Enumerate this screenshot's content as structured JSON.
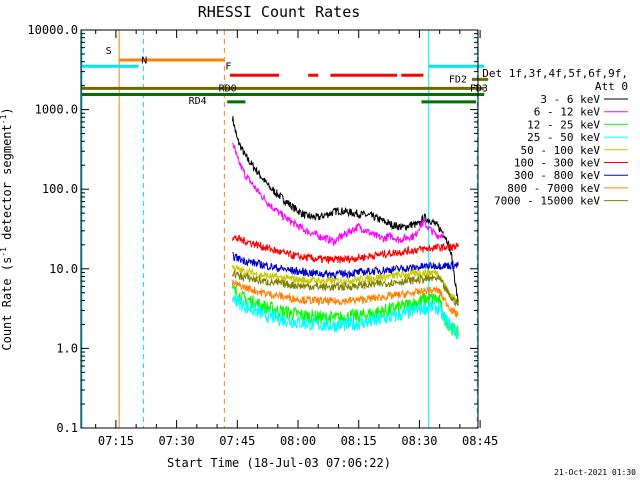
{
  "chart_data": {
    "type": "line",
    "title": "RHESSI Count Rates",
    "xlabel": "Start Time (18-Jul-03 07:06:22)",
    "ylabel_main": "Count Rate (s",
    "ylabel_sup": "-1",
    "ylabel_rest": " detector segment",
    "ylabel_sup2": "-1",
    "ylabel_close": ")",
    "yscale": "log",
    "ylim": [
      0.1,
      10000
    ],
    "xlim_min": [
      426.37,
      766
    ],
    "x_ticks": [
      {
        "t": 435,
        "label": "07:15"
      },
      {
        "t": 450,
        "label": "07:30"
      },
      {
        "t": 465,
        "label": "07:45"
      },
      {
        "t": 480,
        "label": "08:00"
      },
      {
        "t": 495,
        "label": "08:15"
      },
      {
        "t": 510,
        "label": "08:30"
      },
      {
        "t": 525,
        "label": "08:45"
      }
    ],
    "y_ticks": [
      {
        "v": 0.1,
        "label": "0.1"
      },
      {
        "v": 1,
        "label": "1.0"
      },
      {
        "v": 10,
        "label": "10.0"
      },
      {
        "v": 100,
        "label": "100.0"
      },
      {
        "v": 1000,
        "label": "1000.0"
      },
      {
        "v": 10000,
        "label": "10000.0"
      }
    ],
    "legend_header": [
      "Det 1f,3f,4f,5f,6f,9f,",
      "Att 0"
    ],
    "series": [
      {
        "name": "3 - 6 keV",
        "color": "#000000",
        "points": [
          [
            463.8,
            800
          ],
          [
            465,
            420
          ],
          [
            467,
            260
          ],
          [
            470,
            165
          ],
          [
            473,
            105
          ],
          [
            476,
            78
          ],
          [
            479,
            58
          ],
          [
            482,
            46
          ],
          [
            485,
            44
          ],
          [
            487,
            48
          ],
          [
            490,
            54
          ],
          [
            492,
            52
          ],
          [
            494,
            50
          ],
          [
            496,
            48
          ],
          [
            498,
            46
          ],
          [
            500,
            42
          ],
          [
            503,
            36
          ],
          [
            506,
            33
          ],
          [
            508,
            36
          ],
          [
            510,
            36
          ],
          [
            511,
            44
          ],
          [
            512,
            42
          ],
          [
            513,
            40
          ],
          [
            514,
            36
          ],
          [
            515,
            32
          ],
          [
            516,
            28
          ],
          [
            517,
            22
          ],
          [
            518,
            14
          ],
          [
            519,
            6
          ],
          [
            519.6,
            3.5
          ]
        ]
      },
      {
        "name": "6 - 12 keV",
        "color": "#ff00ff",
        "points": [
          [
            463.8,
            400
          ],
          [
            465,
            240
          ],
          [
            467,
            150
          ],
          [
            470,
            95
          ],
          [
            473,
            64
          ],
          [
            476,
            47
          ],
          [
            479,
            37
          ],
          [
            482,
            30
          ],
          [
            485,
            26
          ],
          [
            487,
            24
          ],
          [
            489,
            22
          ],
          [
            491,
            26
          ],
          [
            493,
            30
          ],
          [
            495,
            34
          ],
          [
            497,
            30
          ],
          [
            499,
            26
          ],
          [
            501,
            24
          ],
          [
            503,
            26
          ],
          [
            505,
            23
          ],
          [
            507,
            25
          ],
          [
            509,
            26
          ],
          [
            510,
            34
          ],
          [
            511,
            38
          ],
          [
            512,
            34
          ],
          [
            513,
            30
          ],
          [
            514,
            27
          ],
          [
            515,
            26
          ],
          [
            516,
            28
          ]
        ]
      },
      {
        "name": "12 - 25 keV",
        "color": "#00ff00",
        "points": [
          [
            463.8,
            5.5
          ],
          [
            466,
            4.4
          ],
          [
            468,
            4
          ],
          [
            470,
            3.6
          ],
          [
            472,
            3.3
          ],
          [
            475,
            3
          ],
          [
            478,
            2.8
          ],
          [
            481,
            2.6
          ],
          [
            484,
            2.5
          ],
          [
            487,
            2.4
          ],
          [
            490,
            2.4
          ],
          [
            493,
            2.5
          ],
          [
            496,
            2.6
          ],
          [
            499,
            2.8
          ],
          [
            502,
            3
          ],
          [
            505,
            3.3
          ],
          [
            508,
            3.6
          ],
          [
            510,
            3.9
          ],
          [
            512,
            4.2
          ],
          [
            514,
            4.2
          ],
          [
            515,
            3.9
          ],
          [
            516,
            2.5
          ],
          [
            518,
            1.8
          ],
          [
            519.6,
            1.5
          ]
        ]
      },
      {
        "name": "25 - 50 keV",
        "color": "#00ffff",
        "points": [
          [
            463.8,
            4.4
          ],
          [
            466,
            3.6
          ],
          [
            468,
            3.2
          ],
          [
            470,
            2.9
          ],
          [
            472,
            2.6
          ],
          [
            475,
            2.4
          ],
          [
            478,
            2.2
          ],
          [
            481,
            2.1
          ],
          [
            484,
            2.0
          ],
          [
            487,
            1.95
          ],
          [
            490,
            1.95
          ],
          [
            493,
            2.0
          ],
          [
            496,
            2.1
          ],
          [
            499,
            2.2
          ],
          [
            502,
            2.4
          ],
          [
            505,
            2.6
          ],
          [
            508,
            2.9
          ],
          [
            510,
            3.1
          ],
          [
            512,
            3.3
          ],
          [
            514,
            3.3
          ],
          [
            515,
            3.1
          ],
          [
            516,
            2.4
          ],
          [
            518,
            1.9
          ],
          [
            519.6,
            1.5
          ]
        ]
      },
      {
        "name": "50 - 100 keV",
        "color": "#c8c800",
        "points": [
          [
            463.8,
            10.5
          ],
          [
            466,
            9.4
          ],
          [
            468,
            9
          ],
          [
            470,
            8.5
          ],
          [
            472,
            8.2
          ],
          [
            475,
            7.8
          ],
          [
            478,
            7.5
          ],
          [
            481,
            7.2
          ],
          [
            484,
            7.1
          ],
          [
            487,
            7
          ],
          [
            490,
            7.1
          ],
          [
            493,
            7.2
          ],
          [
            496,
            7.4
          ],
          [
            499,
            7.7
          ],
          [
            502,
            8
          ],
          [
            505,
            8.3
          ],
          [
            508,
            8.6
          ],
          [
            510,
            8.8
          ],
          [
            512,
            9
          ],
          [
            514,
            9
          ],
          [
            515,
            8.6
          ],
          [
            516,
            6.5
          ],
          [
            518,
            4.5
          ],
          [
            519.6,
            3.8
          ]
        ]
      },
      {
        "name": "100 - 300 keV",
        "color": "#ff0000",
        "points": [
          [
            463.8,
            25
          ],
          [
            466,
            23
          ],
          [
            468,
            21.5
          ],
          [
            470,
            20
          ],
          [
            472,
            18.5
          ],
          [
            475,
            16.5
          ],
          [
            478,
            15
          ],
          [
            481,
            14
          ],
          [
            484,
            13.4
          ],
          [
            487,
            13
          ],
          [
            490,
            13
          ],
          [
            493,
            13.4
          ],
          [
            496,
            14
          ],
          [
            499,
            14.8
          ],
          [
            502,
            15.5
          ],
          [
            505,
            16.2
          ],
          [
            508,
            17
          ],
          [
            510,
            17.5
          ],
          [
            512,
            18
          ],
          [
            514,
            18.4
          ],
          [
            516,
            18.6
          ],
          [
            518,
            18.8
          ],
          [
            519.6,
            18.8
          ]
        ]
      },
      {
        "name": "300 - 800 keV",
        "color": "#0000cc",
        "points": [
          [
            463.8,
            14.5
          ],
          [
            466,
            13
          ],
          [
            468,
            12.2
          ],
          [
            470,
            11.6
          ],
          [
            472,
            11
          ],
          [
            475,
            10.2
          ],
          [
            478,
            9.6
          ],
          [
            481,
            9.1
          ],
          [
            484,
            8.8
          ],
          [
            487,
            8.6
          ],
          [
            490,
            8.6
          ],
          [
            493,
            8.8
          ],
          [
            496,
            9.1
          ],
          [
            499,
            9.4
          ],
          [
            502,
            9.7
          ],
          [
            505,
            10
          ],
          [
            508,
            10.3
          ],
          [
            510,
            10.5
          ],
          [
            512,
            10.8
          ],
          [
            514,
            11
          ],
          [
            516,
            11
          ],
          [
            518,
            11
          ],
          [
            519.6,
            11
          ]
        ]
      },
      {
        "name": "800 - 7000 keV",
        "color": "#ff8000",
        "points": [
          [
            463.8,
            6.6
          ],
          [
            466,
            6
          ],
          [
            468,
            5.6
          ],
          [
            470,
            5.2
          ],
          [
            472,
            4.9
          ],
          [
            475,
            4.6
          ],
          [
            478,
            4.3
          ],
          [
            481,
            4.1
          ],
          [
            484,
            4.0
          ],
          [
            487,
            3.9
          ],
          [
            490,
            3.9
          ],
          [
            493,
            4.0
          ],
          [
            496,
            4.1
          ],
          [
            499,
            4.3
          ],
          [
            502,
            4.5
          ],
          [
            505,
            4.7
          ],
          [
            508,
            4.9
          ],
          [
            510,
            5.1
          ],
          [
            512,
            5.3
          ],
          [
            514,
            5.4
          ],
          [
            515,
            5.2
          ],
          [
            516,
            4.2
          ],
          [
            518,
            3
          ],
          [
            519.6,
            2.6
          ]
        ]
      },
      {
        "name": "7000 - 15000 keV",
        "color": "#808000",
        "points": [
          [
            463.8,
            8.8
          ],
          [
            466,
            8
          ],
          [
            468,
            7.6
          ],
          [
            470,
            7.2
          ],
          [
            472,
            6.9
          ],
          [
            475,
            6.6
          ],
          [
            478,
            6.3
          ],
          [
            481,
            6.1
          ],
          [
            484,
            6
          ],
          [
            487,
            5.9
          ],
          [
            490,
            5.9
          ],
          [
            493,
            6
          ],
          [
            496,
            6.2
          ],
          [
            499,
            6.4
          ],
          [
            502,
            6.6
          ],
          [
            505,
            6.9
          ],
          [
            508,
            7.1
          ],
          [
            510,
            7.3
          ],
          [
            512,
            7.5
          ],
          [
            514,
            7.6
          ],
          [
            515,
            7.4
          ],
          [
            516,
            6
          ],
          [
            518,
            4.2
          ],
          [
            519.6,
            3.6
          ]
        ]
      }
    ],
    "vertical_lines": [
      {
        "t": 426.6,
        "color": "#00e5ee",
        "style": "solid"
      },
      {
        "t": 435.8,
        "color": "#ff8000",
        "style": "solid"
      },
      {
        "t": 441.8,
        "color": "#00e5ee",
        "style": "dashed"
      },
      {
        "t": 461.8,
        "color": "#ff8000",
        "style": "dashed"
      },
      {
        "t": 512.3,
        "color": "#00e5ee",
        "style": "solid"
      },
      {
        "t": 524.3,
        "color": "#00e5ee",
        "style": "dashed"
      }
    ],
    "flag_bars": [
      {
        "color": "#ff8000",
        "y": 4200,
        "segments": [
          [
            435.8,
            461.8
          ]
        ],
        "label": "S",
        "label_t": 433.2,
        "label_y": 5000
      },
      {
        "color": "#00e5ee",
        "y": 3500,
        "segments": [
          [
            426.6,
            440.6
          ]
        ],
        "label": "N",
        "label_t": 442,
        "label_y": 3800
      },
      {
        "color": "#00e5ee",
        "y": 3500,
        "segments": [
          [
            512.3,
            526
          ]
        ],
        "label": "",
        "label_t": 0,
        "label_y": 0
      },
      {
        "color": "#ff0000",
        "y": 2700,
        "segments": [
          [
            463.2,
            475.3
          ],
          [
            482.5,
            485
          ],
          [
            488,
            504.5
          ],
          [
            505.5,
            511
          ]
        ],
        "label": "F",
        "label_t": 462.8,
        "label_y": 3200
      },
      {
        "color": "#6b6b00",
        "y": 2400,
        "segments": [
          [
            523,
            527
          ]
        ],
        "label": "FD2",
        "label_t": 519.5,
        "label_y": 2180
      },
      {
        "color": "#6b6b00",
        "y": 1850,
        "segments": [
          [
            426.6,
            526
          ]
        ],
        "label": "FD3",
        "label_t": 524.7,
        "label_y": 1700
      },
      {
        "color": "#007000",
        "y": 1550,
        "segments": [
          [
            426.6,
            526
          ]
        ],
        "label": "RD0",
        "label_t": 462.6,
        "label_y": 1700
      },
      {
        "color": "#007000",
        "y": 1250,
        "segments": [
          [
            462.5,
            467
          ],
          [
            510.5,
            524
          ]
        ],
        "label": "RD4",
        "label_t": 455.2,
        "label_y": 1180
      }
    ],
    "timestamp": "21-Oct-2021 01:30"
  }
}
